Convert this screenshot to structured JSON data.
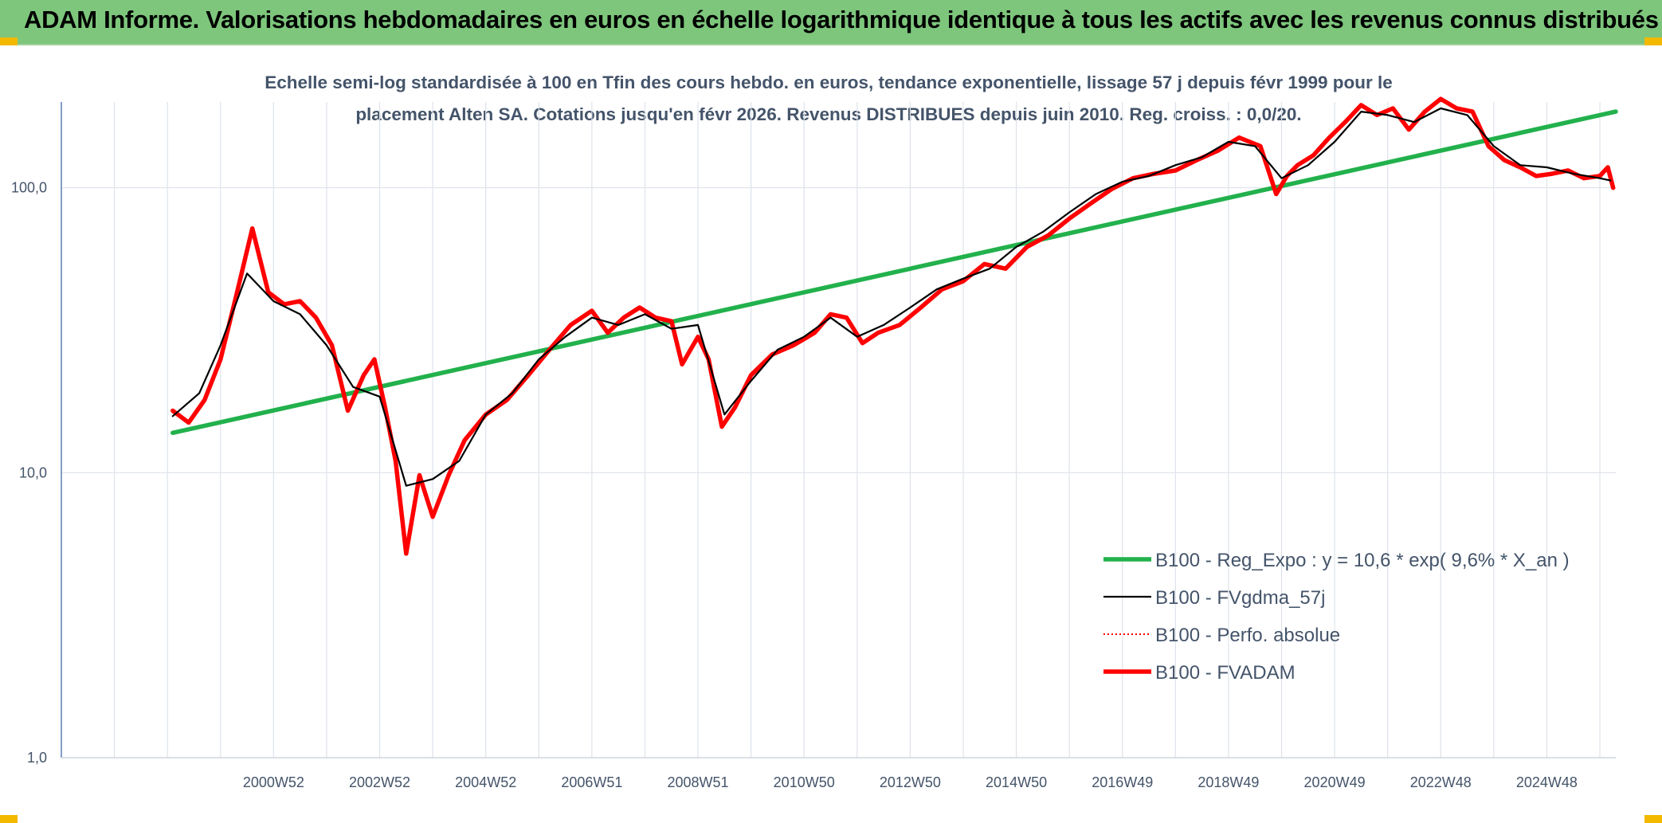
{
  "header": {
    "title": "ADAM Informe. Valorisations hebdomadaires en euros en échelle logarithmique identique à tous les actifs avec les revenus connus distribués",
    "background": "#7dc67c",
    "corner_accent": "#f3b800"
  },
  "chart_data": {
    "type": "line",
    "title": "",
    "subtitle_lines": [
      "Echelle semi-log standardisée à 100 en Tfin des cours hebdo. en euros, tendance exponentielle, lissage 57 j depuis févr 1999 pour le",
      "placement Alten SA. Cotations jusqu'en févr 2026. Revenus DISTRIBUES depuis juin 2010. Reg. croiss. : 0,0/20."
    ],
    "xlabel": "",
    "ylabel": "",
    "y_scale": "log",
    "ylim": [
      1,
      200
    ],
    "y_ticks": [
      {
        "value": 1,
        "label": "1,0"
      },
      {
        "value": 10,
        "label": "10,0"
      },
      {
        "value": 100,
        "label": "100,0"
      }
    ],
    "xlim": [
      1997.0,
      2026.3
    ],
    "x_ticks": [
      {
        "value": 2001.0,
        "label": "2000W52"
      },
      {
        "value": 2003.0,
        "label": "2002W52"
      },
      {
        "value": 2005.0,
        "label": "2004W52"
      },
      {
        "value": 2007.0,
        "label": "2006W51"
      },
      {
        "value": 2009.0,
        "label": "2008W51"
      },
      {
        "value": 2011.0,
        "label": "2010W50"
      },
      {
        "value": 2013.0,
        "label": "2012W50"
      },
      {
        "value": 2015.0,
        "label": "2014W50"
      },
      {
        "value": 2017.0,
        "label": "2016W49"
      },
      {
        "value": 2019.0,
        "label": "2018W49"
      },
      {
        "value": 2021.0,
        "label": "2020W49"
      },
      {
        "value": 2023.0,
        "label": "2022W48"
      },
      {
        "value": 2025.0,
        "label": "2024W48"
      }
    ],
    "vertical_grid": true,
    "horizontal_grid": true,
    "legend_position": "bottom-right",
    "series": [
      {
        "name": "B100 - Reg_Expo : y = 10,6 * exp( 9,6% *  X_an )",
        "color": "#22b14c",
        "style": "solid-thick",
        "x": [
          1999.1,
          2026.3
        ],
        "y": [
          13.8,
          185
        ]
      },
      {
        "name": "B100 - FVgdma_57j",
        "color": "#000000",
        "style": "solid-thin",
        "x": [
          1999.1,
          1999.6,
          2000.0,
          2000.5,
          2001.0,
          2001.5,
          2002.0,
          2002.5,
          2003.0,
          2003.5,
          2004.0,
          2004.5,
          2005.0,
          2005.5,
          2006.0,
          2006.5,
          2007.0,
          2007.5,
          2008.0,
          2008.5,
          2009.0,
          2009.5,
          2010.0,
          2010.5,
          2011.0,
          2011.5,
          2012.0,
          2012.5,
          2013.0,
          2013.5,
          2014.0,
          2014.5,
          2015.0,
          2015.5,
          2016.0,
          2016.5,
          2017.0,
          2017.5,
          2018.0,
          2018.5,
          2019.0,
          2019.5,
          2020.0,
          2020.5,
          2021.0,
          2021.5,
          2022.0,
          2022.5,
          2023.0,
          2023.5,
          2024.0,
          2024.5,
          2025.0,
          2025.5,
          2026.0,
          2026.2
        ],
        "y": [
          15.8,
          19.0,
          28.0,
          50.0,
          40.0,
          36.0,
          28.0,
          20.0,
          18.5,
          9.0,
          9.5,
          11.0,
          16.0,
          19.0,
          25.0,
          30.0,
          35.0,
          33.0,
          36.0,
          32.0,
          33.0,
          16.0,
          21.0,
          27.0,
          30.0,
          35.0,
          30.0,
          33.0,
          38.0,
          44.0,
          48.0,
          52.0,
          62.0,
          70.0,
          82.0,
          95.0,
          105.0,
          110.0,
          120.0,
          128.0,
          145.0,
          140.0,
          108.0,
          120.0,
          145.0,
          185.0,
          180.0,
          170.0,
          190.0,
          180.0,
          140.0,
          120.0,
          118.0,
          112.0,
          108.0,
          106.0
        ]
      },
      {
        "name": "B100 - Perfo. absolue",
        "color": "#ff0000",
        "style": "dotted",
        "x": [],
        "y": []
      },
      {
        "name": "B100 - FVADAM",
        "color": "#ff0000",
        "style": "solid-thick",
        "x": [
          1999.1,
          1999.4,
          1999.7,
          2000.0,
          2000.3,
          2000.6,
          2000.9,
          2001.2,
          2001.5,
          2001.8,
          2002.1,
          2002.4,
          2002.7,
          2002.9,
          2003.1,
          2003.3,
          2003.5,
          2003.75,
          2004.0,
          2004.3,
          2004.6,
          2005.0,
          2005.4,
          2005.8,
          2006.2,
          2006.6,
          2007.0,
          2007.3,
          2007.6,
          2007.9,
          2008.2,
          2008.5,
          2008.7,
          2009.0,
          2009.2,
          2009.45,
          2009.7,
          2010.0,
          2010.4,
          2010.8,
          2011.2,
          2011.5,
          2011.8,
          2012.1,
          2012.4,
          2012.8,
          2013.2,
          2013.6,
          2014.0,
          2014.4,
          2014.8,
          2015.2,
          2015.6,
          2016.0,
          2016.4,
          2016.8,
          2017.2,
          2017.6,
          2018.0,
          2018.4,
          2018.8,
          2019.2,
          2019.6,
          2019.9,
          2020.1,
          2020.3,
          2020.6,
          2020.9,
          2021.2,
          2021.5,
          2021.8,
          2022.1,
          2022.4,
          2022.7,
          2023.0,
          2023.3,
          2023.6,
          2023.9,
          2024.2,
          2024.5,
          2024.8,
          2025.1,
          2025.4,
          2025.7,
          2026.0,
          2026.15,
          2026.25
        ],
        "y": [
          16.5,
          15.0,
          18.0,
          25.0,
          42.0,
          72.0,
          43.0,
          39.0,
          40.0,
          35.0,
          28.0,
          16.5,
          22.0,
          25.0,
          17.0,
          11.0,
          5.2,
          9.8,
          7.0,
          9.8,
          13.0,
          16.0,
          18.0,
          22.0,
          27.0,
          33.0,
          37.0,
          31.0,
          35.0,
          38.0,
          35.0,
          34.0,
          24.0,
          30.0,
          25.0,
          14.5,
          17.0,
          22.0,
          26.0,
          28.0,
          31.0,
          36.0,
          35.0,
          28.5,
          31.0,
          33.0,
          38.0,
          44.0,
          47.0,
          54.0,
          52.0,
          62.0,
          68.0,
          78.0,
          88.0,
          99.0,
          108.0,
          112.0,
          115.0,
          125.0,
          135.0,
          150.0,
          140.0,
          95.0,
          110.0,
          120.0,
          130.0,
          150.0,
          170.0,
          195.0,
          180.0,
          190.0,
          160.0,
          185.0,
          205.0,
          190.0,
          185.0,
          140.0,
          125.0,
          118.0,
          110.0,
          112.0,
          115.0,
          108.0,
          110.0,
          118.0,
          100.0
        ]
      }
    ]
  }
}
